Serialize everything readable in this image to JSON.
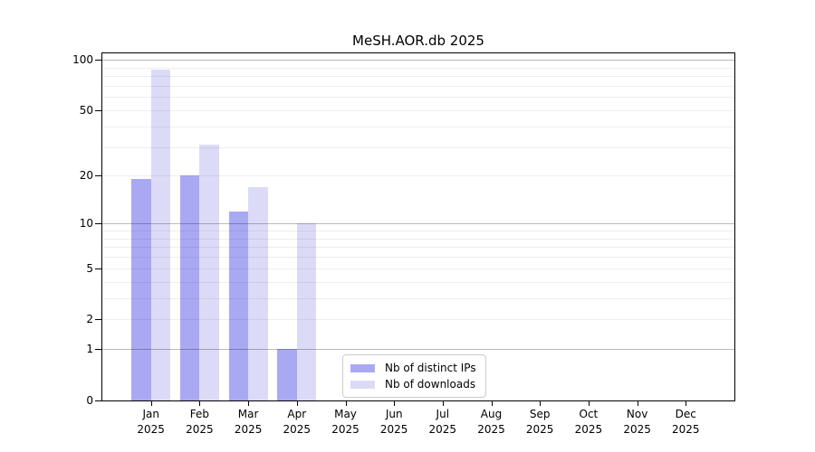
{
  "chart_data": {
    "type": "bar",
    "title": "MeSH.AOR.db 2025",
    "categories": [
      "Jan",
      "Feb",
      "Mar",
      "Apr",
      "May",
      "Jun",
      "Jul",
      "Aug",
      "Sep",
      "Oct",
      "Nov",
      "Dec"
    ],
    "x_year_line": "2025",
    "series": [
      {
        "name": "Nb of distinct IPs",
        "color": "#a9a9f3",
        "values": [
          19,
          20,
          12,
          1,
          0,
          0,
          0,
          0,
          0,
          0,
          0,
          0
        ]
      },
      {
        "name": "Nb of downloads",
        "color": "#dbdbf8",
        "values": [
          87,
          31,
          17,
          10,
          0,
          0,
          0,
          0,
          0,
          0,
          0,
          0
        ]
      }
    ],
    "y_axis": {
      "scale": "symlog_log10_1plusV",
      "tick_values": [
        0,
        1,
        2,
        5,
        10,
        20,
        50,
        100
      ],
      "tick_labels": [
        "0",
        "1",
        "2",
        "5",
        "10",
        "20",
        "50",
        "100"
      ],
      "major_gridline_values": [
        1,
        10,
        100
      ],
      "minor_gridline_values": [
        2,
        3,
        4,
        5,
        6,
        7,
        8,
        9,
        20,
        30,
        40,
        50,
        60,
        70,
        80,
        90
      ],
      "ylim_bottom": 0,
      "ylim_top_approx": 109
    },
    "legend": {
      "position": "inside-bottom-center",
      "entries": [
        "Nb of distinct IPs",
        "Nb of downloads"
      ]
    },
    "grid": true
  }
}
